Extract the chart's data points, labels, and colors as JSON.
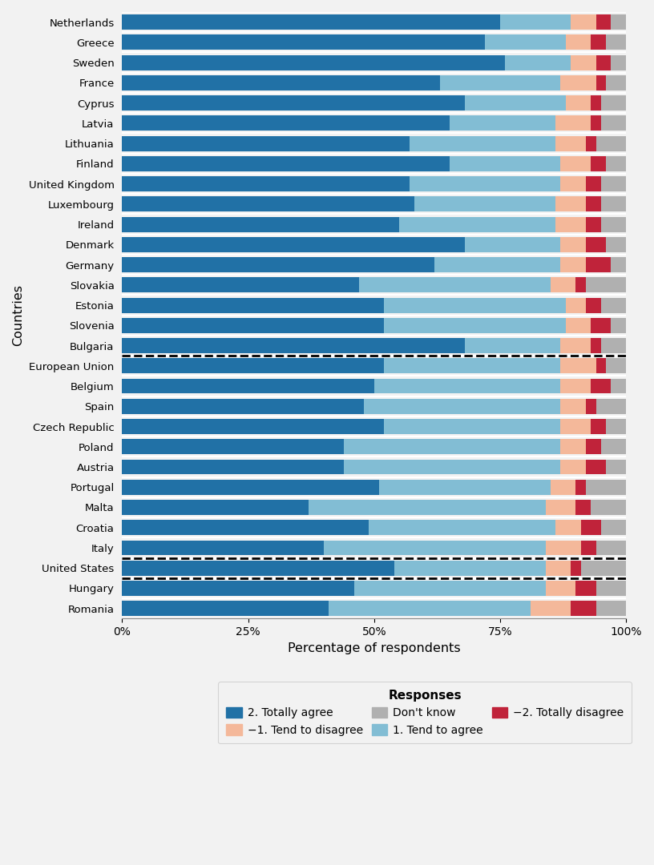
{
  "countries": [
    "Netherlands",
    "Greece",
    "Sweden",
    "France",
    "Cyprus",
    "Latvia",
    "Lithuania",
    "Finland",
    "United Kingdom",
    "Luxembourg",
    "Ireland",
    "Denmark",
    "Germany",
    "Slovakia",
    "Estonia",
    "Slovenia",
    "Bulgaria",
    "European Union",
    "Belgium",
    "Spain",
    "Czech Republic",
    "Poland",
    "Austria",
    "Portugal",
    "Malta",
    "Croatia",
    "Italy",
    "United States",
    "Hungary",
    "Romania"
  ],
  "totally_agree": [
    75,
    72,
    76,
    63,
    68,
    65,
    57,
    65,
    57,
    58,
    55,
    68,
    62,
    47,
    52,
    52,
    68,
    52,
    50,
    48,
    52,
    44,
    44,
    51,
    37,
    49,
    40,
    54,
    46,
    41
  ],
  "tend_to_agree": [
    14,
    16,
    13,
    24,
    20,
    21,
    29,
    22,
    30,
    28,
    31,
    19,
    25,
    38,
    36,
    36,
    19,
    35,
    37,
    39,
    35,
    43,
    43,
    34,
    47,
    37,
    44,
    30,
    38,
    40
  ],
  "tend_to_disagree": [
    5,
    5,
    5,
    7,
    5,
    7,
    6,
    6,
    5,
    6,
    6,
    5,
    5,
    5,
    4,
    5,
    6,
    7,
    6,
    5,
    6,
    5,
    5,
    5,
    6,
    5,
    7,
    5,
    6,
    8
  ],
  "totally_disagree": [
    3,
    3,
    3,
    2,
    2,
    2,
    2,
    3,
    3,
    3,
    3,
    4,
    5,
    2,
    3,
    4,
    2,
    2,
    4,
    2,
    3,
    3,
    4,
    2,
    3,
    4,
    3,
    2,
    4,
    5
  ],
  "dont_know": [
    3,
    4,
    3,
    4,
    5,
    5,
    6,
    4,
    5,
    5,
    5,
    4,
    3,
    8,
    5,
    3,
    5,
    4,
    3,
    6,
    4,
    5,
    4,
    8,
    7,
    5,
    6,
    9,
    6,
    6
  ],
  "colors": {
    "totally_agree": "#2171a6",
    "tend_to_agree": "#82bdd4",
    "tend_to_disagree": "#f4b89a",
    "totally_disagree": "#c0233a",
    "dont_know": "#b0b0b0"
  },
  "background_color": "#f2f2f2",
  "xlabel": "Percentage of respondents",
  "ylabel": "Countries"
}
